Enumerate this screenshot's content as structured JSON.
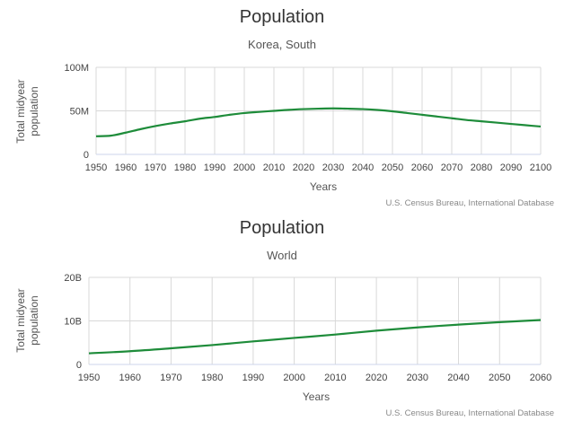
{
  "chart_data": [
    {
      "type": "line",
      "title": "Population",
      "subtitle": "Korea, South",
      "xlabel": "Years",
      "ylabel": "Total midyear population",
      "credit": "U.S. Census Bureau, International Database",
      "xlim": [
        1950,
        2100
      ],
      "ylim": [
        0,
        100000000
      ],
      "x_ticks": [
        1950,
        1960,
        1970,
        1980,
        1990,
        2000,
        2010,
        2020,
        2030,
        2040,
        2050,
        2060,
        2070,
        2080,
        2090,
        2100
      ],
      "y_ticks": [
        0,
        50000000,
        100000000
      ],
      "y_tick_labels": [
        "0",
        "50M",
        "100M"
      ],
      "grid": true,
      "series": [
        {
          "color": "#1e8c3a",
          "x": [
            1950,
            1955,
            1960,
            1965,
            1970,
            1975,
            1980,
            1985,
            1990,
            1995,
            2000,
            2005,
            2010,
            2015,
            2020,
            2025,
            2030,
            2035,
            2040,
            2045,
            2050,
            2055,
            2060,
            2065,
            2070,
            2075,
            2080,
            2085,
            2090,
            2095,
            2100
          ],
          "values": [
            20800000,
            21500000,
            25000000,
            29000000,
            32500000,
            35500000,
            38000000,
            41000000,
            43000000,
            45500000,
            47500000,
            48800000,
            50000000,
            51200000,
            52000000,
            52500000,
            52800000,
            52500000,
            52000000,
            51000000,
            49500000,
            47500000,
            45500000,
            43500000,
            41500000,
            39500000,
            38000000,
            36500000,
            35000000,
            33500000,
            32000000
          ]
        }
      ]
    },
    {
      "type": "line",
      "title": "Population",
      "subtitle": "World",
      "xlabel": "Years",
      "ylabel": "Total midyear population",
      "credit": "U.S. Census Bureau, International Database",
      "xlim": [
        1950,
        2060
      ],
      "ylim": [
        0,
        20000000000
      ],
      "x_ticks": [
        1950,
        1960,
        1970,
        1980,
        1990,
        2000,
        2010,
        2020,
        2030,
        2040,
        2050,
        2060
      ],
      "y_ticks": [
        0,
        10000000000,
        20000000000
      ],
      "y_tick_labels": [
        "0",
        "10B",
        "20B"
      ],
      "grid": true,
      "series": [
        {
          "color": "#1e8c3a",
          "x": [
            1950,
            1960,
            1970,
            1980,
            1990,
            2000,
            2010,
            2020,
            2030,
            2040,
            2050,
            2060
          ],
          "values": [
            2560000000,
            3040000000,
            3710000000,
            4450000000,
            5290000000,
            6090000000,
            6870000000,
            7760000000,
            8500000000,
            9150000000,
            9710000000,
            10200000000
          ]
        }
      ]
    }
  ]
}
